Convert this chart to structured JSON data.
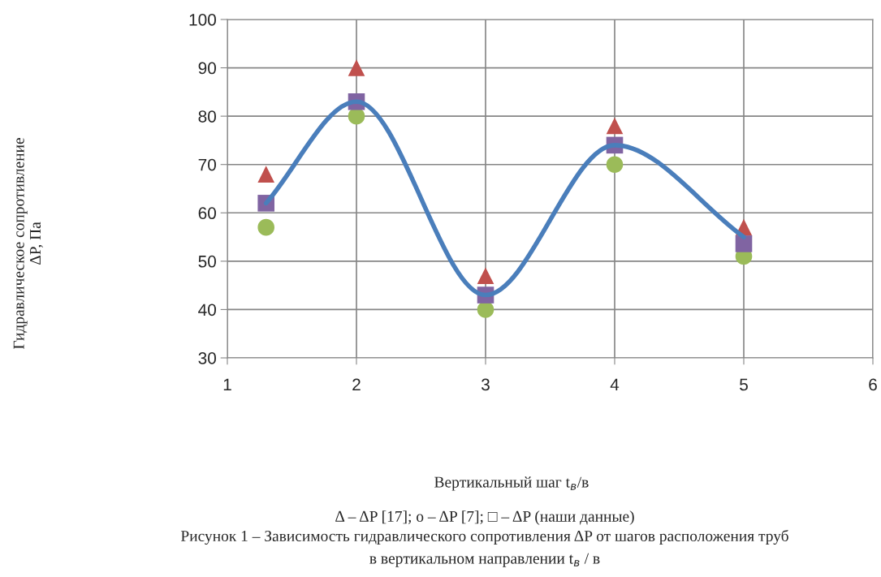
{
  "chart_data": {
    "type": "scatter",
    "x": [
      1.3,
      2,
      3,
      4,
      5
    ],
    "series": [
      {
        "type": "line",
        "color": "#4a7ebb",
        "marker": "none",
        "values": [
          62,
          83,
          43,
          74,
          55
        ]
      },
      {
        "color": "#c0504d",
        "marker": "triangle",
        "values": [
          68,
          90,
          47,
          78,
          57
        ]
      },
      {
        "color": "#9bbb59",
        "marker": "circle",
        "values": [
          57,
          80,
          40,
          70,
          51
        ]
      },
      {
        "color": "#8064a2",
        "marker": "square",
        "values": [
          62,
          83,
          43,
          74,
          53.6
        ]
      }
    ],
    "xlim": [
      1,
      6
    ],
    "xticks": [
      1,
      2,
      3,
      4,
      5,
      6
    ],
    "ylim": [
      30,
      100
    ],
    "yticks": [
      30,
      40,
      50,
      60,
      70,
      80,
      90,
      100
    ],
    "grid": true,
    "legend": false,
    "annotations": [
      "Гидравлическое сопротивление\nΔP, Па",
      "Вертикальный шаг t$_{в}$/в",
      "Δ – ΔP [17]; o – ΔP [7]; □ – ΔP (наши данные)",
      "Рисунок 1 – Зависимость гидравлического сопротивления ΔP от шагов расположения труб",
      "в вертикальном направлении t$_{в}$ / в"
    ]
  }
}
